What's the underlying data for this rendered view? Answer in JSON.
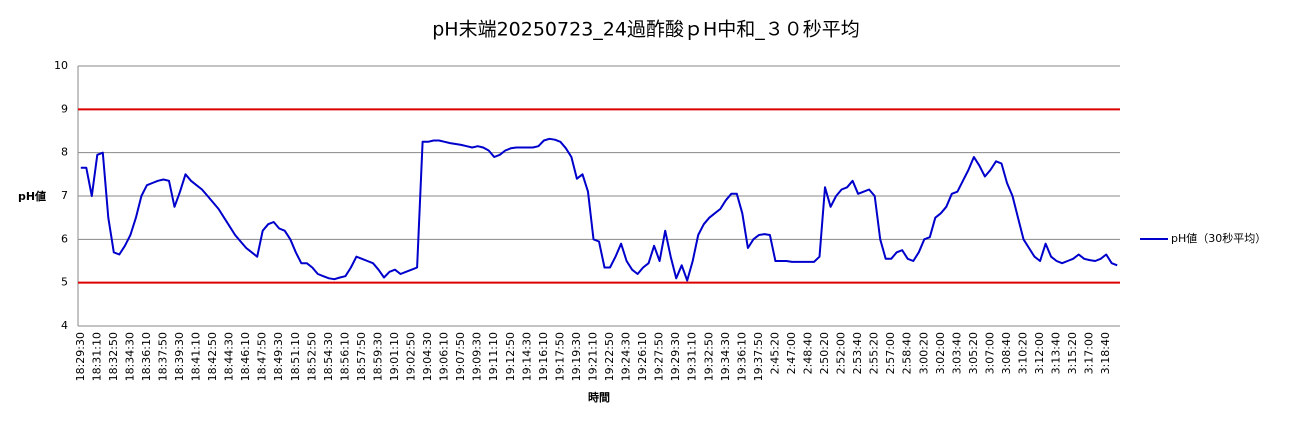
{
  "chart_data": {
    "type": "line",
    "title": "pH末端20250723_24過酢酸ｐH中和_３０秒平均",
    "x_label": "時間",
    "y_label": "pH値",
    "categories": [
      "18:29:30",
      null,
      null,
      "18:31:10",
      null,
      null,
      "18:32:50",
      null,
      null,
      "18:34:30",
      null,
      null,
      "18:36:10",
      null,
      null,
      "18:37:50",
      null,
      null,
      "18:39:30",
      null,
      null,
      "18:41:10",
      null,
      null,
      "18:42:50",
      null,
      null,
      "18:44:30",
      null,
      null,
      "18:46:10",
      null,
      null,
      "18:47:50",
      null,
      null,
      "18:49:30",
      null,
      null,
      "18:51:10",
      null,
      null,
      "18:52:50",
      null,
      null,
      "18:54:30",
      null,
      null,
      "18:56:10",
      null,
      null,
      "18:57:50",
      null,
      null,
      "18:59:30",
      null,
      null,
      "19:01:10",
      null,
      null,
      "19:02:50",
      null,
      null,
      "19:04:30",
      null,
      null,
      "19:06:10",
      null,
      null,
      "19:07:50",
      null,
      null,
      "19:09:30",
      null,
      null,
      "19:11:10",
      null,
      null,
      "19:12:50",
      null,
      null,
      "19:14:30",
      null,
      null,
      "19:16:10",
      null,
      null,
      "19:17:50",
      null,
      null,
      "19:19:30",
      null,
      null,
      "19:21:10",
      null,
      null,
      "19:22:50",
      null,
      null,
      "19:24:30",
      null,
      null,
      "19:26:10",
      null,
      null,
      "19:27:50",
      null,
      null,
      "19:29:30",
      null,
      null,
      "19:31:10",
      null,
      null,
      "19:32:50",
      null,
      null,
      "19:34:30",
      null,
      null,
      "19:36:10",
      null,
      null,
      "19:37:50",
      null,
      null,
      "2:45:20",
      null,
      null,
      "2:47:00",
      null,
      null,
      "2:48:40",
      null,
      null,
      "2:50:20",
      null,
      null,
      "2:52:00",
      null,
      null,
      "2:53:40",
      null,
      null,
      "2:55:20",
      null,
      null,
      "2:57:00",
      null,
      null,
      "2:58:40",
      null,
      null,
      "3:00:20",
      null,
      null,
      "3:02:00",
      null,
      null,
      "3:03:40",
      null,
      null,
      "3:05:20",
      null,
      null,
      "3:07:00",
      null,
      null,
      "3:08:40",
      null,
      null,
      "3:10:20",
      null,
      null,
      "3:12:00",
      null,
      null,
      "3:13:40",
      null,
      null,
      "3:15:20",
      null,
      null,
      "3:17:00",
      null,
      null,
      "3:18:40",
      null,
      null
    ],
    "series": [
      {
        "name": "pH値（30秒平均）",
        "color": "#0000cc",
        "values": [
          7.65,
          7.65,
          7.0,
          7.95,
          8.0,
          6.5,
          5.7,
          5.65,
          5.85,
          6.1,
          6.5,
          7.0,
          7.25,
          7.3,
          7.35,
          7.38,
          7.35,
          6.75,
          7.1,
          7.5,
          7.35,
          7.25,
          7.15,
          7.0,
          6.85,
          6.7,
          6.5,
          6.3,
          6.1,
          5.95,
          5.8,
          5.7,
          5.6,
          6.2,
          6.35,
          6.4,
          6.25,
          6.2,
          6.0,
          5.7,
          5.45,
          5.45,
          5.35,
          5.2,
          5.15,
          5.1,
          5.08,
          5.12,
          5.15,
          5.35,
          5.6,
          5.55,
          5.5,
          5.45,
          5.3,
          5.12,
          5.25,
          5.3,
          5.2,
          5.25,
          5.3,
          5.35,
          8.25,
          8.25,
          8.28,
          8.28,
          8.25,
          8.22,
          8.2,
          8.18,
          8.15,
          8.12,
          8.15,
          8.12,
          8.05,
          7.9,
          7.95,
          8.05,
          8.1,
          8.12,
          8.12,
          8.12,
          8.12,
          8.15,
          8.28,
          8.32,
          8.3,
          8.25,
          8.1,
          7.9,
          7.4,
          7.5,
          7.1,
          6.0,
          5.95,
          5.35,
          5.35,
          5.6,
          5.9,
          5.5,
          5.3,
          5.2,
          5.35,
          5.45,
          5.85,
          5.5,
          6.2,
          5.6,
          5.1,
          5.4,
          5.05,
          5.5,
          6.1,
          6.35,
          6.5,
          6.6,
          6.7,
          6.9,
          7.05,
          7.05,
          6.6,
          5.8,
          6.0,
          6.1,
          6.12,
          6.1,
          5.5,
          5.5,
          5.5,
          5.48,
          5.48,
          5.48,
          5.48,
          5.48,
          5.6,
          7.2,
          6.75,
          7.0,
          7.15,
          7.2,
          7.35,
          7.05,
          7.1,
          7.15,
          7.0,
          6.0,
          5.55,
          5.55,
          5.7,
          5.75,
          5.55,
          5.5,
          5.7,
          6.0,
          6.05,
          6.5,
          6.6,
          6.75,
          7.05,
          7.1,
          7.35,
          7.6,
          7.9,
          7.7,
          7.45,
          7.6,
          7.8,
          7.75,
          7.3,
          7.0,
          6.5,
          6.0,
          5.8,
          5.6,
          5.5,
          5.9,
          5.6,
          5.5,
          5.45,
          5.5,
          5.55,
          5.65,
          5.55,
          5.52,
          5.5,
          5.55,
          5.65,
          5.45,
          5.4
        ]
      }
    ],
    "ylim": [
      4,
      10
    ],
    "yticks": [
      4,
      5,
      6,
      7,
      8,
      9,
      10
    ],
    "grid": true,
    "reference_lines": [
      {
        "value": 9,
        "color": "#dd0000"
      },
      {
        "value": 5,
        "color": "#dd0000"
      }
    ],
    "legend": "right"
  }
}
